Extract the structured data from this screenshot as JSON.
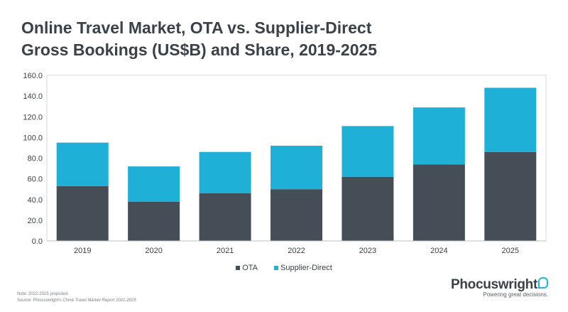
{
  "title_line1": "Online Travel Market, OTA vs. Supplier-Direct",
  "title_line2": "Gross Bookings (US$B) and Share, 2019-2025",
  "footnote_line1": "Note: 2022-2025 projected.",
  "footnote_source_prefix": "Source: Phocuswright's ",
  "footnote_source_title": "China Travel Market Report 2021-2025",
  "brand": {
    "name": "Phocuswright",
    "tagline": "Powering great decisions."
  },
  "colors": {
    "OTA": "#454d57",
    "Supplier-Direct": "#1fb0d8"
  },
  "chart_data": {
    "type": "bar",
    "stacked": true,
    "categories": [
      "2019",
      "2020",
      "2021",
      "2022",
      "2023",
      "2024",
      "2025"
    ],
    "series": [
      {
        "name": "OTA",
        "values": [
          53,
          38,
          46,
          50,
          62,
          74,
          86
        ]
      },
      {
        "name": "Supplier-Direct",
        "values": [
          42,
          34,
          40,
          42,
          49,
          55,
          62
        ]
      }
    ],
    "ylim": [
      0,
      160
    ],
    "yticks": [
      "0.0",
      "20.0",
      "40.0",
      "60.0",
      "80.0",
      "100.0",
      "120.0",
      "140.0",
      "160.0"
    ],
    "grid": false,
    "legend_position": "bottom"
  }
}
